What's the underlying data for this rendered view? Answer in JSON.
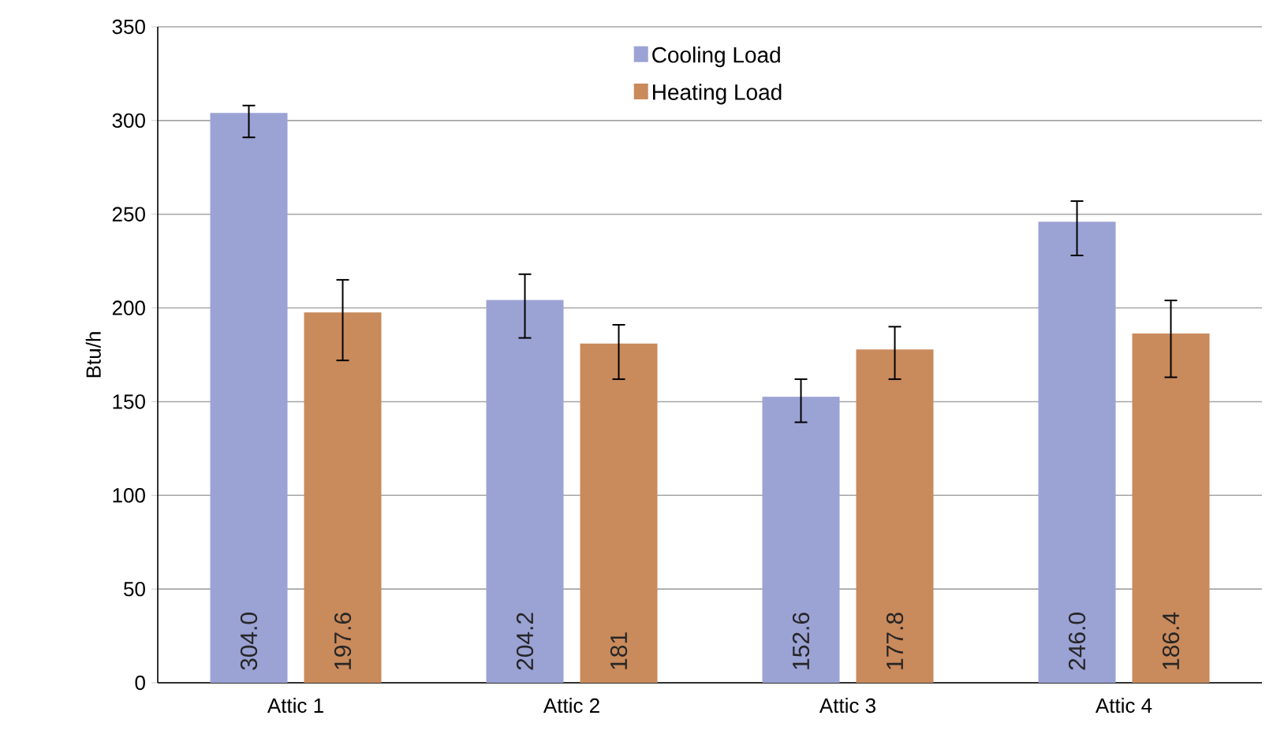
{
  "chart_data": {
    "type": "bar",
    "ylabel": "Btu/h",
    "categories": [
      "Attic 1",
      "Attic 2",
      "Attic 3",
      "Attic 4"
    ],
    "series": [
      {
        "name": "Cooling Load",
        "color": "#9ba2d4",
        "values": [
          304.0,
          204.2,
          152.6,
          246.0
        ],
        "value_labels": [
          "304.0",
          "204.2",
          "152.6",
          "246.0"
        ],
        "errors": [
          [
            291,
            308
          ],
          [
            184,
            218
          ],
          [
            139,
            162
          ],
          [
            228,
            257
          ]
        ]
      },
      {
        "name": "Heating Load",
        "color": "#c98a5c",
        "values": [
          197.6,
          181,
          177.8,
          186.4
        ],
        "value_labels": [
          "197.6",
          "181",
          "177.8",
          "186.4"
        ],
        "errors": [
          [
            172,
            215
          ],
          [
            162,
            191
          ],
          [
            162,
            190
          ],
          [
            163,
            204
          ]
        ]
      }
    ],
    "ylim": [
      0,
      350
    ],
    "yticks": [
      0,
      50,
      100,
      150,
      200,
      250,
      300,
      350
    ],
    "grid": "y",
    "legend": "top"
  }
}
